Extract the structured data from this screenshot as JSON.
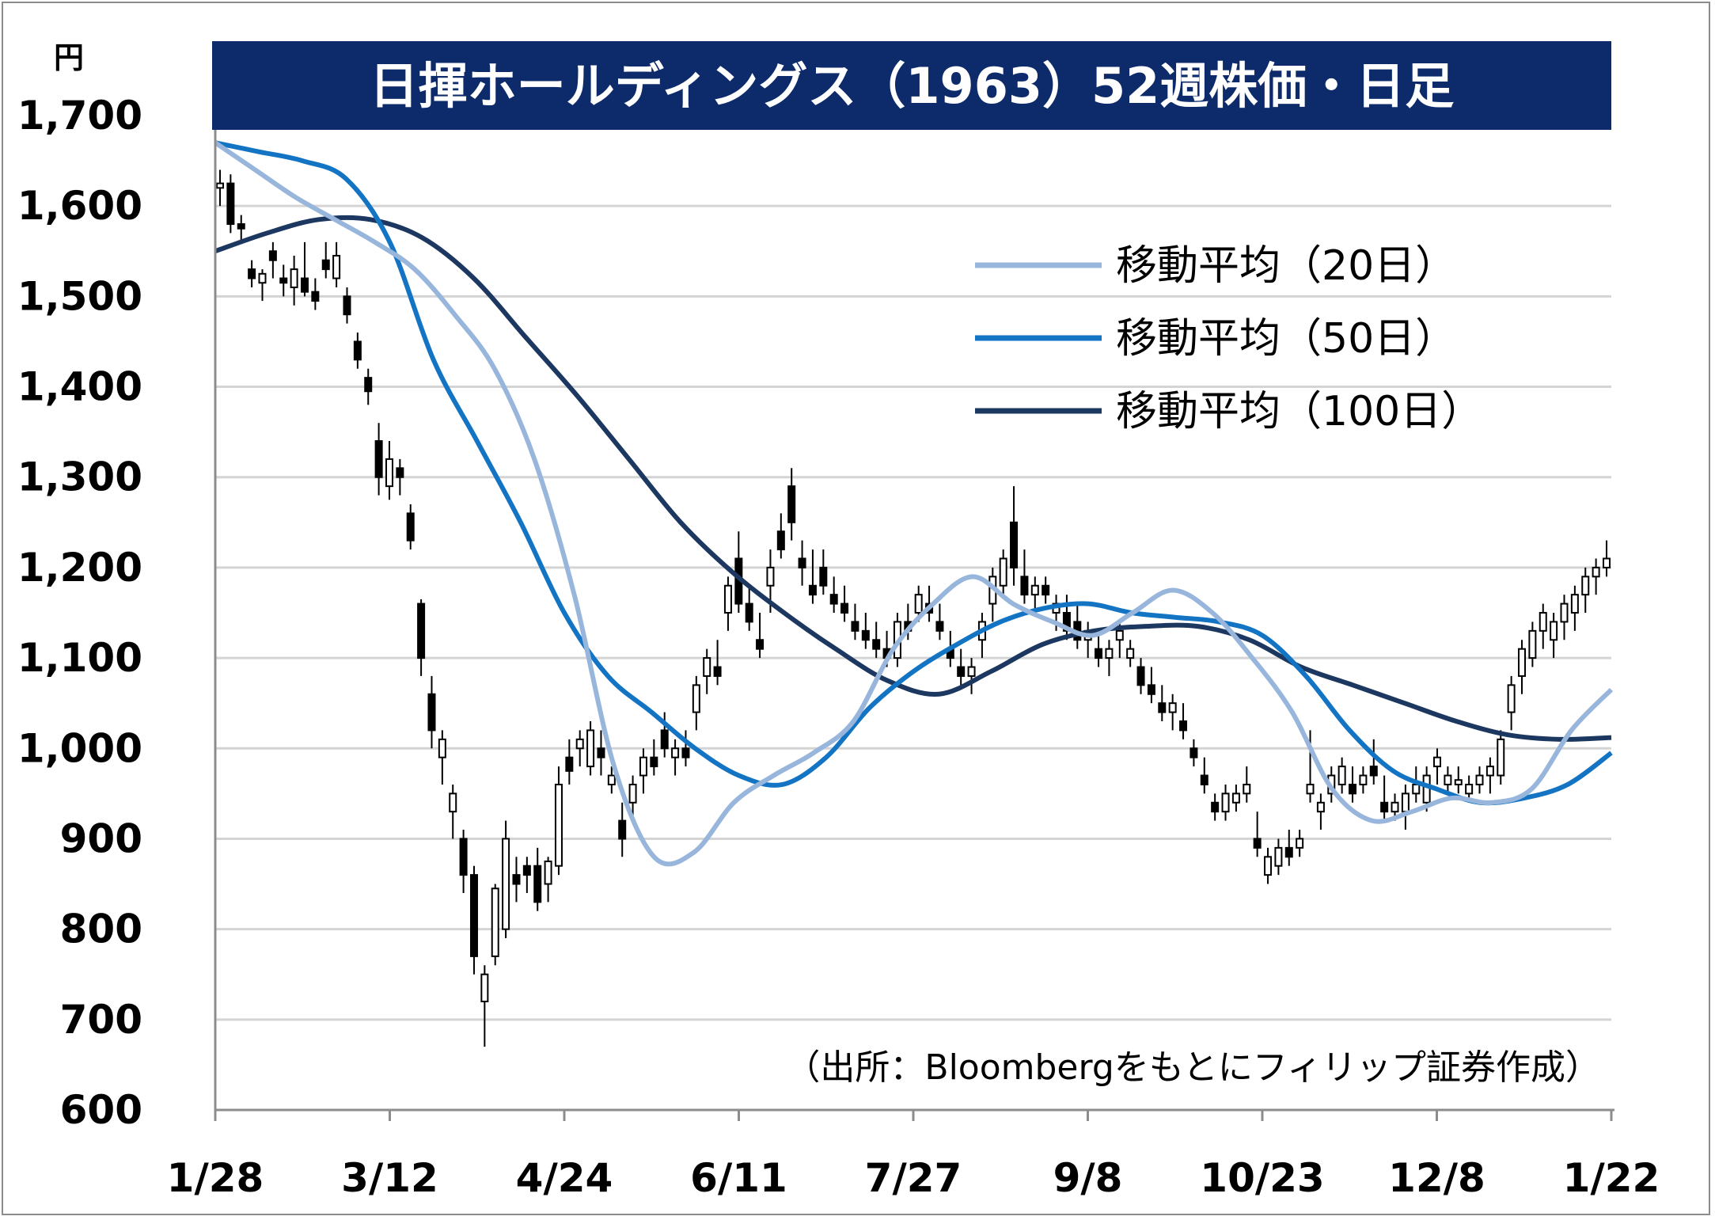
{
  "chart_data": {
    "type": "candlestick",
    "title": "日揮ホールディングス（1963）52週株価・日足",
    "unit": "円",
    "ylim": [
      600,
      1700
    ],
    "y_ticks": [
      "1,700",
      "1,600",
      "1,500",
      "1,400",
      "1,300",
      "1,200",
      "1,100",
      "1,000",
      "900",
      "800",
      "700",
      "600"
    ],
    "x_ticks": [
      "1/28",
      "3/12",
      "4/24",
      "6/11",
      "7/27",
      "9/8",
      "10/23",
      "12/8",
      "1/22"
    ],
    "grid": true,
    "legend_position": "top-right",
    "source": "（出所：Bloombergをもとにフィリップ証券作成）",
    "series": [
      {
        "name": "移動平均（20日）",
        "kind": "line",
        "color": "#98b6dc",
        "values": [
          [
            0,
            1670
          ],
          [
            1,
            1640
          ],
          [
            2,
            1610
          ],
          [
            3,
            1585
          ],
          [
            4,
            1560
          ],
          [
            5,
            1530
          ],
          [
            6,
            1480
          ],
          [
            7,
            1420
          ],
          [
            8,
            1320
          ],
          [
            9,
            1170
          ],
          [
            10,
            980
          ],
          [
            11,
            880
          ],
          [
            12,
            885
          ],
          [
            13,
            940
          ],
          [
            14,
            970
          ],
          [
            15,
            995
          ],
          [
            16,
            1030
          ],
          [
            17,
            1110
          ],
          [
            18,
            1160
          ],
          [
            19,
            1190
          ],
          [
            20,
            1160
          ],
          [
            21,
            1140
          ],
          [
            22,
            1125
          ],
          [
            23,
            1150
          ],
          [
            24,
            1175
          ],
          [
            25,
            1150
          ],
          [
            26,
            1100
          ],
          [
            27,
            1040
          ],
          [
            28,
            955
          ],
          [
            29,
            920
          ],
          [
            30,
            930
          ],
          [
            31,
            945
          ],
          [
            32,
            940
          ],
          [
            33,
            955
          ],
          [
            34,
            1020
          ],
          [
            35,
            1065
          ]
        ]
      },
      {
        "name": "移動平均（50日）",
        "kind": "line",
        "color": "#1474c4",
        "values": [
          [
            0,
            1670
          ],
          [
            1,
            1660
          ],
          [
            2,
            1650
          ],
          [
            3,
            1630
          ],
          [
            4,
            1560
          ],
          [
            5,
            1430
          ],
          [
            6,
            1340
          ],
          [
            7,
            1250
          ],
          [
            8,
            1150
          ],
          [
            9,
            1080
          ],
          [
            10,
            1040
          ],
          [
            11,
            1000
          ],
          [
            12,
            970
          ],
          [
            13,
            960
          ],
          [
            14,
            990
          ],
          [
            15,
            1045
          ],
          [
            16,
            1085
          ],
          [
            17,
            1115
          ],
          [
            18,
            1140
          ],
          [
            19,
            1155
          ],
          [
            20,
            1160
          ],
          [
            21,
            1150
          ],
          [
            22,
            1145
          ],
          [
            23,
            1140
          ],
          [
            24,
            1125
          ],
          [
            25,
            1080
          ],
          [
            26,
            1020
          ],
          [
            27,
            975
          ],
          [
            28,
            955
          ],
          [
            29,
            940
          ],
          [
            30,
            945
          ],
          [
            31,
            960
          ],
          [
            32,
            995
          ]
        ]
      },
      {
        "name": "移動平均（100日）",
        "kind": "line",
        "color": "#1c3760",
        "values": [
          [
            0,
            1550
          ],
          [
            1,
            1570
          ],
          [
            2,
            1585
          ],
          [
            3,
            1585
          ],
          [
            4,
            1565
          ],
          [
            5,
            1520
          ],
          [
            6,
            1455
          ],
          [
            7,
            1390
          ],
          [
            8,
            1320
          ],
          [
            9,
            1250
          ],
          [
            10,
            1195
          ],
          [
            11,
            1150
          ],
          [
            12,
            1110
          ],
          [
            13,
            1075
          ],
          [
            14,
            1060
          ],
          [
            15,
            1085
          ],
          [
            16,
            1115
          ],
          [
            17,
            1130
          ],
          [
            18,
            1135
          ],
          [
            19,
            1135
          ],
          [
            20,
            1120
          ],
          [
            21,
            1090
          ],
          [
            22,
            1070
          ],
          [
            23,
            1050
          ],
          [
            24,
            1030
          ],
          [
            25,
            1015
          ],
          [
            26,
            1010
          ],
          [
            27,
            1012
          ]
        ]
      }
    ],
    "candles": [
      [
        1620,
        1640,
        1600,
        1625
      ],
      [
        1625,
        1635,
        1570,
        1580
      ],
      [
        1580,
        1590,
        1560,
        1575
      ],
      [
        1530,
        1540,
        1510,
        1520
      ],
      [
        1515,
        1530,
        1495,
        1525
      ],
      [
        1550,
        1560,
        1520,
        1540
      ],
      [
        1520,
        1535,
        1500,
        1515
      ],
      [
        1510,
        1545,
        1490,
        1530
      ],
      [
        1520,
        1560,
        1500,
        1505
      ],
      [
        1505,
        1520,
        1485,
        1495
      ],
      [
        1540,
        1560,
        1520,
        1530
      ],
      [
        1520,
        1560,
        1510,
        1545
      ],
      [
        1500,
        1510,
        1470,
        1480
      ],
      [
        1450,
        1460,
        1420,
        1430
      ],
      [
        1410,
        1420,
        1380,
        1395
      ],
      [
        1340,
        1360,
        1280,
        1300
      ],
      [
        1290,
        1340,
        1275,
        1320
      ],
      [
        1310,
        1320,
        1280,
        1300
      ],
      [
        1260,
        1270,
        1220,
        1230
      ],
      [
        1160,
        1165,
        1080,
        1100
      ],
      [
        1060,
        1080,
        1000,
        1020
      ],
      [
        990,
        1020,
        960,
        1010
      ],
      [
        930,
        960,
        900,
        950
      ],
      [
        900,
        910,
        840,
        860
      ],
      [
        860,
        870,
        750,
        770
      ],
      [
        720,
        760,
        670,
        750
      ],
      [
        770,
        850,
        760,
        845
      ],
      [
        800,
        920,
        790,
        900
      ],
      [
        860,
        880,
        830,
        850
      ],
      [
        870,
        880,
        840,
        860
      ],
      [
        870,
        890,
        820,
        830
      ],
      [
        850,
        880,
        830,
        875
      ],
      [
        870,
        980,
        860,
        960
      ],
      [
        990,
        1010,
        960,
        975
      ],
      [
        1000,
        1020,
        980,
        1010
      ],
      [
        980,
        1030,
        970,
        1020
      ],
      [
        1000,
        1020,
        970,
        990
      ],
      [
        960,
        980,
        950,
        970
      ],
      [
        920,
        940,
        880,
        900
      ],
      [
        940,
        970,
        920,
        960
      ],
      [
        970,
        1000,
        950,
        990
      ],
      [
        990,
        1010,
        970,
        980
      ],
      [
        1020,
        1040,
        990,
        1000
      ],
      [
        990,
        1010,
        970,
        1000
      ],
      [
        1000,
        1020,
        980,
        990
      ],
      [
        1040,
        1080,
        1020,
        1070
      ],
      [
        1080,
        1110,
        1060,
        1100
      ],
      [
        1090,
        1120,
        1070,
        1080
      ],
      [
        1150,
        1190,
        1130,
        1180
      ],
      [
        1210,
        1240,
        1150,
        1160
      ],
      [
        1160,
        1180,
        1130,
        1140
      ],
      [
        1120,
        1150,
        1100,
        1110
      ],
      [
        1180,
        1220,
        1150,
        1200
      ],
      [
        1240,
        1260,
        1210,
        1220
      ],
      [
        1290,
        1310,
        1230,
        1250
      ],
      [
        1210,
        1230,
        1180,
        1200
      ],
      [
        1180,
        1220,
        1160,
        1170
      ],
      [
        1200,
        1220,
        1170,
        1180
      ],
      [
        1170,
        1190,
        1150,
        1160
      ],
      [
        1160,
        1180,
        1140,
        1150
      ],
      [
        1140,
        1160,
        1120,
        1130
      ],
      [
        1130,
        1150,
        1110,
        1120
      ],
      [
        1120,
        1140,
        1100,
        1110
      ],
      [
        1110,
        1130,
        1090,
        1100
      ],
      [
        1100,
        1150,
        1090,
        1140
      ],
      [
        1140,
        1160,
        1120,
        1130
      ],
      [
        1150,
        1180,
        1140,
        1170
      ],
      [
        1160,
        1180,
        1140,
        1150
      ],
      [
        1140,
        1160,
        1120,
        1130
      ],
      [
        1110,
        1130,
        1090,
        1100
      ],
      [
        1090,
        1110,
        1070,
        1080
      ],
      [
        1080,
        1100,
        1060,
        1090
      ],
      [
        1120,
        1150,
        1100,
        1140
      ],
      [
        1160,
        1200,
        1140,
        1190
      ],
      [
        1180,
        1220,
        1170,
        1210
      ],
      [
        1250,
        1290,
        1180,
        1200
      ],
      [
        1190,
        1220,
        1160,
        1170
      ],
      [
        1170,
        1190,
        1150,
        1180
      ],
      [
        1180,
        1190,
        1160,
        1170
      ],
      [
        1150,
        1170,
        1130,
        1160
      ],
      [
        1150,
        1170,
        1120,
        1130
      ],
      [
        1140,
        1160,
        1110,
        1120
      ],
      [
        1120,
        1140,
        1100,
        1130
      ],
      [
        1110,
        1130,
        1090,
        1100
      ],
      [
        1100,
        1120,
        1080,
        1110
      ],
      [
        1120,
        1140,
        1100,
        1130
      ],
      [
        1100,
        1120,
        1090,
        1110
      ],
      [
        1090,
        1100,
        1060,
        1070
      ],
      [
        1070,
        1090,
        1050,
        1060
      ],
      [
        1050,
        1070,
        1030,
        1040
      ],
      [
        1040,
        1060,
        1020,
        1050
      ],
      [
        1030,
        1050,
        1010,
        1020
      ],
      [
        1000,
        1010,
        980,
        990
      ],
      [
        970,
        990,
        950,
        960
      ],
      [
        940,
        950,
        920,
        930
      ],
      [
        930,
        960,
        920,
        950
      ],
      [
        940,
        960,
        930,
        950
      ],
      [
        950,
        980,
        940,
        960
      ],
      [
        900,
        930,
        880,
        890
      ],
      [
        860,
        890,
        850,
        880
      ],
      [
        870,
        900,
        860,
        890
      ],
      [
        890,
        910,
        870,
        880
      ],
      [
        890,
        910,
        880,
        900
      ],
      [
        950,
        1020,
        940,
        960
      ],
      [
        930,
        950,
        910,
        940
      ],
      [
        950,
        980,
        940,
        970
      ],
      [
        960,
        990,
        950,
        980
      ],
      [
        960,
        980,
        940,
        950
      ],
      [
        960,
        980,
        950,
        970
      ],
      [
        980,
        1010,
        960,
        970
      ],
      [
        940,
        970,
        920,
        930
      ],
      [
        930,
        950,
        920,
        940
      ],
      [
        930,
        960,
        910,
        950
      ],
      [
        950,
        980,
        940,
        960
      ],
      [
        940,
        980,
        930,
        970
      ],
      [
        980,
        1000,
        960,
        990
      ],
      [
        960,
        980,
        950,
        970
      ],
      [
        960,
        980,
        950,
        965
      ],
      [
        950,
        970,
        940,
        960
      ],
      [
        960,
        980,
        950,
        970
      ],
      [
        970,
        990,
        950,
        980
      ],
      [
        970,
        1020,
        960,
        1010
      ],
      [
        1040,
        1080,
        1020,
        1070
      ],
      [
        1080,
        1120,
        1060,
        1110
      ],
      [
        1100,
        1140,
        1090,
        1130
      ],
      [
        1130,
        1160,
        1110,
        1150
      ],
      [
        1120,
        1150,
        1100,
        1140
      ],
      [
        1140,
        1170,
        1120,
        1160
      ],
      [
        1150,
        1180,
        1130,
        1170
      ],
      [
        1170,
        1200,
        1150,
        1190
      ],
      [
        1190,
        1210,
        1170,
        1200
      ],
      [
        1200,
        1230,
        1190,
        1210
      ]
    ]
  }
}
